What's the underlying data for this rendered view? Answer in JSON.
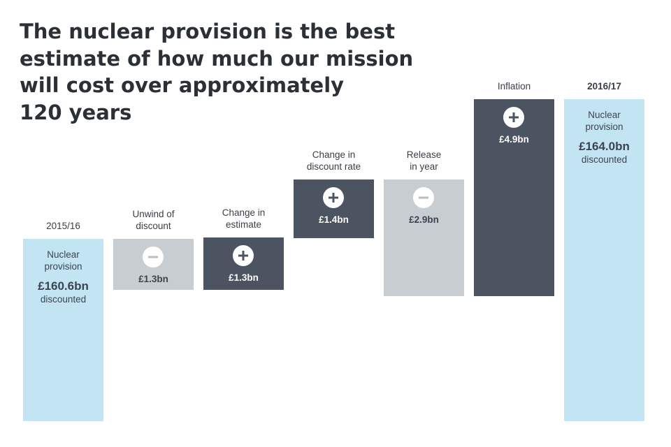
{
  "title_lines": [
    "The nuclear provision is the best",
    "estimate of how much our mission",
    "will cost over approximately",
    "120 years"
  ],
  "chart_data": {
    "type": "bar",
    "subtype": "waterfall",
    "unit": "£bn",
    "steps": [
      {
        "label_lines": [
          "2015/16"
        ],
        "kind": "total",
        "value": 160.6,
        "text_top": [
          "Nuclear",
          "provision"
        ],
        "value_label": "£160.6bn",
        "text_bottom": "discounted"
      },
      {
        "label_lines": [
          "Unwind of",
          "discount"
        ],
        "kind": "decrease",
        "value": -1.3,
        "value_label": "£1.3bn"
      },
      {
        "label_lines": [
          "Change in",
          "estimate"
        ],
        "kind": "increase",
        "value": 1.3,
        "value_label": "£1.3bn"
      },
      {
        "label_lines": [
          "Change in",
          "discount rate"
        ],
        "kind": "increase",
        "value": 1.4,
        "value_label": "£1.4bn"
      },
      {
        "label_lines": [
          "Release",
          "in year"
        ],
        "kind": "decrease",
        "value": -2.9,
        "value_label": "£2.9bn"
      },
      {
        "label_lines": [
          "Inflation"
        ],
        "kind": "increase",
        "value": 4.9,
        "value_label": "£4.9bn"
      },
      {
        "label_lines": [
          "2016/17"
        ],
        "kind": "total",
        "value": 164.0,
        "bold_label": true,
        "text_top": [
          "Nuclear",
          "provision"
        ],
        "value_label": "£164.0bn",
        "text_bottom": "discounted"
      }
    ]
  },
  "colors": {
    "total": "#c3e4f3",
    "increase": "#4b5460",
    "decrease": "#c8cdd2"
  },
  "icons": {
    "increase": "plus-circle-icon",
    "decrease": "minus-circle-icon"
  }
}
